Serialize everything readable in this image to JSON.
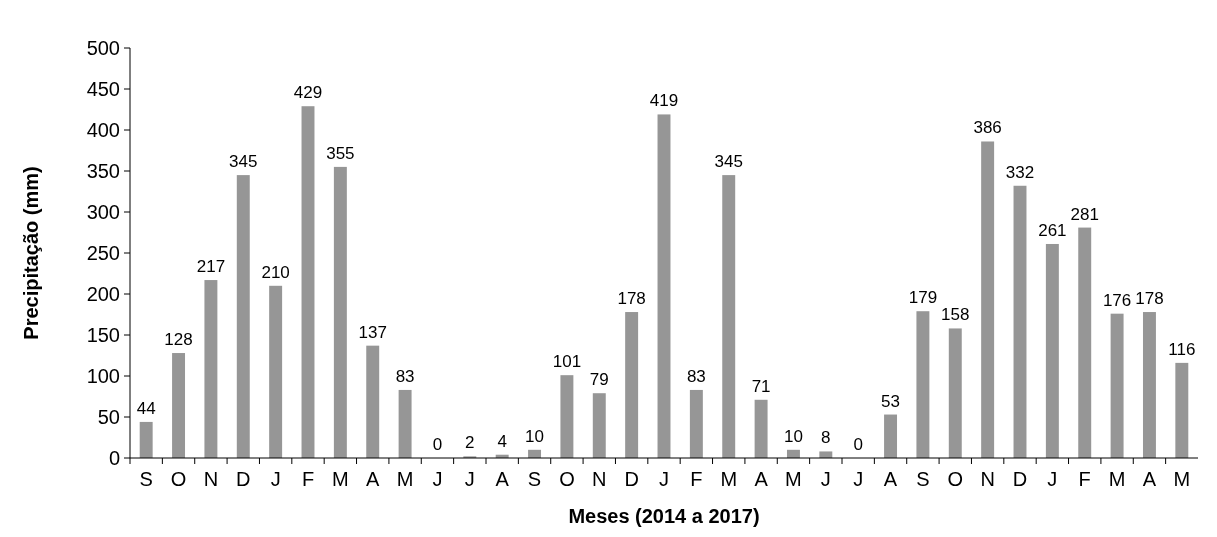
{
  "chart_data": {
    "type": "bar",
    "xlabel": "Meses (2014 a 2017)",
    "ylabel": "Precipitação (mm)",
    "categories": [
      "S",
      "O",
      "N",
      "D",
      "J",
      "F",
      "M",
      "A",
      "M",
      "J",
      "J",
      "A",
      "S",
      "O",
      "N",
      "D",
      "J",
      "F",
      "M",
      "A",
      "M",
      "J",
      "J",
      "A",
      "S",
      "O",
      "N",
      "D",
      "J",
      "F",
      "M",
      "A",
      "M"
    ],
    "series": [
      {
        "color": "#969696",
        "values": [
          44,
          128,
          217,
          345,
          210,
          429,
          355,
          137,
          83,
          0,
          2,
          4,
          10,
          101,
          79,
          178,
          419,
          83,
          345,
          71,
          10,
          8,
          0,
          53,
          179,
          158,
          386,
          332,
          261,
          281,
          176,
          178,
          116
        ]
      }
    ],
    "ylim": [
      0,
      500
    ],
    "yticks": [
      0,
      50,
      100,
      150,
      200,
      250,
      300,
      350,
      400,
      450,
      500
    ],
    "data_labels": true,
    "grid": false
  }
}
